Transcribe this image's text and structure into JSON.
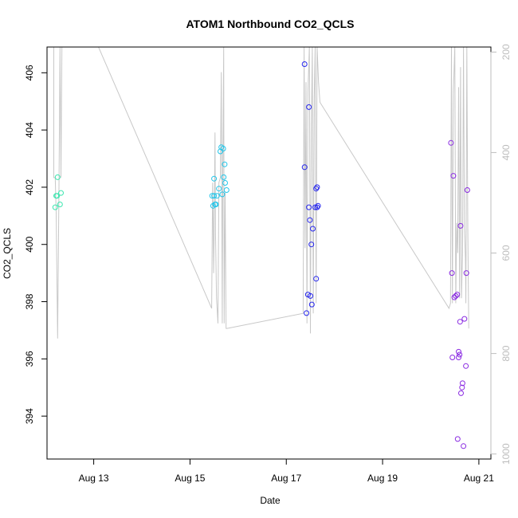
{
  "chart_data": {
    "type": "scatter",
    "title": "ATOM1 Northbound CO2_QCLS",
    "xlabel": "Date",
    "ylabel": "CO2_QCLS",
    "x_ticks": [
      {
        "day": 13,
        "label": "Aug 13"
      },
      {
        "day": 15,
        "label": "Aug 15"
      },
      {
        "day": 17,
        "label": "Aug 17"
      },
      {
        "day": 19,
        "label": "Aug 19"
      },
      {
        "day": 21,
        "label": "Aug 21"
      }
    ],
    "xlim_days": [
      12.03,
      21.25
    ],
    "ylim": [
      392.5,
      406.9
    ],
    "y_ticks": [
      394,
      396,
      398,
      400,
      402,
      404,
      406
    ],
    "secondary_axis": {
      "side": "right",
      "reversed": true,
      "range": [
        190,
        1010
      ],
      "ticks": [
        200,
        400,
        600,
        800,
        1000
      ],
      "color": "#bdbdbd"
    },
    "colors": {
      "line": "#c8c8c8",
      "axis": "#000000",
      "secondary_axis": "#bdbdbd"
    },
    "series": [
      {
        "color": "#3ee6b0",
        "points": [
          [
            12.2,
            401.3
          ],
          [
            12.22,
            401.7
          ],
          [
            12.24,
            401.7
          ],
          [
            12.25,
            402.35
          ],
          [
            12.3,
            401.4
          ],
          [
            12.32,
            401.8
          ]
        ]
      },
      {
        "color": "#22c6ea",
        "points": [
          [
            15.46,
            401.7
          ],
          [
            15.48,
            401.35
          ],
          [
            15.5,
            402.3
          ],
          [
            15.5,
            401.7
          ],
          [
            15.52,
            401.4
          ],
          [
            15.54,
            401.4
          ],
          [
            15.56,
            401.7
          ],
          [
            15.6,
            401.95
          ],
          [
            15.63,
            403.25
          ],
          [
            15.65,
            403.4
          ],
          [
            15.67,
            401.75
          ],
          [
            15.69,
            403.35
          ],
          [
            15.7,
            402.35
          ],
          [
            15.72,
            402.8
          ],
          [
            15.73,
            402.15
          ],
          [
            15.76,
            401.9
          ]
        ]
      },
      {
        "color": "#2626ee",
        "points": [
          [
            17.38,
            406.3
          ],
          [
            17.38,
            402.7
          ],
          [
            17.42,
            397.6
          ],
          [
            17.45,
            398.25
          ],
          [
            17.47,
            404.8
          ],
          [
            17.47,
            401.3
          ],
          [
            17.49,
            400.85
          ],
          [
            17.5,
            398.2
          ],
          [
            17.52,
            400.0
          ],
          [
            17.53,
            397.9
          ],
          [
            17.55,
            400.55
          ],
          [
            17.6,
            401.3
          ],
          [
            17.62,
            401.95
          ],
          [
            17.62,
            398.8
          ],
          [
            17.64,
            402.0
          ],
          [
            17.64,
            401.3
          ],
          [
            17.66,
            401.35
          ]
        ]
      },
      {
        "color": "#8a2be2",
        "points": [
          [
            20.42,
            403.55
          ],
          [
            20.44,
            399.0
          ],
          [
            20.45,
            396.05
          ],
          [
            20.47,
            402.4
          ],
          [
            20.49,
            398.15
          ],
          [
            20.52,
            398.2
          ],
          [
            20.55,
            398.25
          ],
          [
            20.56,
            393.2
          ],
          [
            20.58,
            396.25
          ],
          [
            20.58,
            396.05
          ],
          [
            20.6,
            396.15
          ],
          [
            20.61,
            397.3
          ],
          [
            20.62,
            400.65
          ],
          [
            20.63,
            394.8
          ],
          [
            20.65,
            395.0
          ],
          [
            20.66,
            395.15
          ],
          [
            20.68,
            392.95
          ],
          [
            20.7,
            397.4
          ],
          [
            20.73,
            395.75
          ],
          [
            20.74,
            399.0
          ],
          [
            20.76,
            401.9
          ]
        ]
      }
    ],
    "secondary_line": [
      [
        12.17,
        190
      ],
      [
        12.17,
        450
      ],
      [
        12.2,
        450
      ],
      [
        12.22,
        520
      ],
      [
        12.25,
        770
      ],
      [
        12.28,
        450
      ],
      [
        12.3,
        190
      ],
      [
        12.32,
        450
      ],
      [
        12.34,
        190
      ],
      [
        13.1,
        190
      ],
      [
        15.45,
        710
      ],
      [
        15.47,
        460
      ],
      [
        15.48,
        520
      ],
      [
        15.49,
        640
      ],
      [
        15.5,
        580
      ],
      [
        15.52,
        360
      ],
      [
        15.53,
        560
      ],
      [
        15.55,
        690
      ],
      [
        15.58,
        740
      ],
      [
        15.6,
        460
      ],
      [
        15.63,
        450
      ],
      [
        15.65,
        240
      ],
      [
        15.67,
        740
      ],
      [
        15.68,
        460
      ],
      [
        15.7,
        190
      ],
      [
        15.71,
        740
      ],
      [
        15.73,
        480
      ],
      [
        15.75,
        750
      ],
      [
        15.77,
        750
      ],
      [
        17.35,
        720
      ],
      [
        17.37,
        190
      ],
      [
        17.39,
        590
      ],
      [
        17.41,
        260
      ],
      [
        17.43,
        740
      ],
      [
        17.45,
        280
      ],
      [
        17.48,
        190
      ],
      [
        17.5,
        760
      ],
      [
        17.52,
        350
      ],
      [
        17.54,
        190
      ],
      [
        17.56,
        720
      ],
      [
        17.58,
        290
      ],
      [
        17.6,
        190
      ],
      [
        17.62,
        700
      ],
      [
        17.64,
        190
      ],
      [
        17.67,
        260
      ],
      [
        17.7,
        300
      ],
      [
        20.38,
        710
      ],
      [
        20.41,
        700
      ],
      [
        20.43,
        190
      ],
      [
        20.45,
        700
      ],
      [
        20.47,
        280
      ],
      [
        20.5,
        190
      ],
      [
        20.52,
        700
      ],
      [
        20.54,
        540
      ],
      [
        20.56,
        600
      ],
      [
        20.58,
        270
      ],
      [
        20.6,
        690
      ],
      [
        20.62,
        230
      ],
      [
        20.64,
        690
      ],
      [
        20.66,
        600
      ],
      [
        20.68,
        190
      ],
      [
        20.7,
        550
      ],
      [
        20.72,
        610
      ],
      [
        20.73,
        700
      ],
      [
        20.75,
        190
      ],
      [
        20.77,
        550
      ],
      [
        20.79,
        750
      ]
    ]
  }
}
